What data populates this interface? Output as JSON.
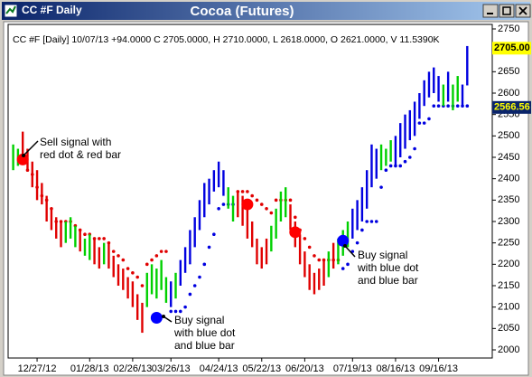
{
  "window_title": "CC #F Daily",
  "chart_data": {
    "type": "ohlc-signals",
    "title": "Cocoa (Futures)",
    "header": "CC #F [Daily] 10/07/13 +94.0000 C 2705.0000, H 2710.0000, L 2618.0000, O 2621.0000, V 11.5390K",
    "ylim": [
      2000,
      2750
    ],
    "yticks": [
      2000,
      2050,
      2100,
      2150,
      2200,
      2250,
      2300,
      2350,
      2400,
      2450,
      2500,
      2550,
      2600,
      2650,
      2700,
      2750
    ],
    "xlim": [
      0,
      96
    ],
    "xticks": [
      {
        "value": 5,
        "label": "12/27/12"
      },
      {
        "value": 16,
        "label": "01/28/13"
      },
      {
        "value": 25,
        "label": "02/26/13"
      },
      {
        "value": 33,
        "label": "03/26/13"
      },
      {
        "value": 43,
        "label": "04/24/13"
      },
      {
        "value": 52,
        "label": "05/22/13"
      },
      {
        "value": 61,
        "label": "06/20/13"
      },
      {
        "value": 71,
        "label": "07/19/13"
      },
      {
        "value": 80,
        "label": "08/16/13"
      },
      {
        "value": 89,
        "label": "09/16/13"
      }
    ],
    "bars": {
      "low": [
        2420,
        2430,
        2440,
        2420,
        2380,
        2350,
        2340,
        2300,
        2280,
        2260,
        2240,
        2250,
        2260,
        2240,
        2230,
        2220,
        2210,
        2200,
        2190,
        2200,
        2190,
        2170,
        2150,
        2140,
        2120,
        2100,
        2070,
        2040,
        2100,
        2130,
        2120,
        2140,
        2110,
        2100,
        2120,
        2150,
        2180,
        2200,
        2240,
        2280,
        2310,
        2340,
        2370,
        2380,
        2360,
        2330,
        2300,
        2310,
        2290,
        2260,
        2240,
        2200,
        2190,
        2200,
        2230,
        2260,
        2300,
        2310,
        2280,
        2240,
        2200,
        2170,
        2140,
        2130,
        2140,
        2150,
        2170,
        2190,
        2200,
        2220,
        2240,
        2260,
        2280,
        2300,
        2330,
        2380,
        2400,
        2420,
        2430,
        2440,
        2430,
        2450,
        2470,
        2490,
        2500,
        2540,
        2570,
        2590,
        2600,
        2580,
        2570,
        2580,
        2560,
        2580,
        2570,
        2618
      ],
      "high": [
        2480,
        2470,
        2510,
        2470,
        2440,
        2420,
        2390,
        2360,
        2330,
        2310,
        2300,
        2300,
        2310,
        2290,
        2280,
        2260,
        2270,
        2260,
        2240,
        2250,
        2250,
        2220,
        2200,
        2190,
        2170,
        2160,
        2130,
        2110,
        2180,
        2200,
        2190,
        2210,
        2170,
        2160,
        2180,
        2210,
        2240,
        2280,
        2310,
        2350,
        2390,
        2400,
        2420,
        2440,
        2420,
        2380,
        2360,
        2370,
        2360,
        2330,
        2300,
        2260,
        2240,
        2260,
        2290,
        2330,
        2370,
        2380,
        2340,
        2300,
        2270,
        2230,
        2200,
        2180,
        2190,
        2210,
        2230,
        2250,
        2260,
        2280,
        2300,
        2330,
        2350,
        2380,
        2420,
        2480,
        2470,
        2480,
        2470,
        2490,
        2500,
        2530,
        2550,
        2560,
        2580,
        2600,
        2630,
        2650,
        2660,
        2640,
        2620,
        2650,
        2620,
        2640,
        2620,
        2710
      ],
      "colors": [
        "#00d000",
        "#00d000",
        "#e00000",
        "#e00000",
        "#e00000",
        "#e00000",
        "#e00000",
        "#e00000",
        "#e00000",
        "#e00000",
        "#e00000",
        "#00d000",
        "#00d000",
        "#00d000",
        "#e00000",
        "#00d000",
        "#00d000",
        "#e00000",
        "#e00000",
        "#00d000",
        "#e00000",
        "#e00000",
        "#e00000",
        "#e00000",
        "#e00000",
        "#e00000",
        "#e00000",
        "#e00000",
        "#00d000",
        "#00d000",
        "#00d000",
        "#00d000",
        "#00d000",
        "#0000e0",
        "#00d000",
        "#0000e0",
        "#0000e0",
        "#0000e0",
        "#0000e0",
        "#0000e0",
        "#0000e0",
        "#0000e0",
        "#0000e0",
        "#0000e0",
        "#0000e0",
        "#00d000",
        "#00d000",
        "#e00000",
        "#e00000",
        "#e00000",
        "#e00000",
        "#e00000",
        "#e00000",
        "#e00000",
        "#00d000",
        "#00d000",
        "#00d000",
        "#00d000",
        "#e00000",
        "#e00000",
        "#e00000",
        "#e00000",
        "#e00000",
        "#e00000",
        "#e00000",
        "#e00000",
        "#00d000",
        "#e00000",
        "#00d000",
        "#00d000",
        "#00d000",
        "#0000e0",
        "#0000e0",
        "#0000e0",
        "#0000e0",
        "#0000e0",
        "#0000e0",
        "#00d000",
        "#00d000",
        "#00d000",
        "#0000e0",
        "#0000e0",
        "#0000e0",
        "#0000e0",
        "#0000e0",
        "#0000e0",
        "#0000e0",
        "#0000e0",
        "#0000e0",
        "#0000e0",
        "#00d000",
        "#0000e0",
        "#00d000",
        "#00d000",
        "#0000e0",
        "#0000e0"
      ]
    },
    "stops": [
      {
        "color": "#e00000",
        "values": [
          null,
          null,
          null,
          2420,
          2410,
          2380,
          2360,
          2350,
          2330,
          2300,
          2300,
          2300,
          2300,
          2290,
          2280,
          2270,
          2270,
          2260,
          2260,
          2260,
          2250,
          2230,
          2220,
          2210,
          2190,
          2180,
          2170,
          2150,
          2200,
          2210,
          2220,
          2230,
          2230,
          null,
          null,
          null,
          null,
          null,
          null,
          null,
          null,
          null,
          null,
          null,
          null,
          null,
          null,
          2370,
          2370,
          2370,
          2360,
          2350,
          2340,
          2330,
          2320,
          2350,
          2350,
          2350,
          2350,
          2310,
          2280,
          2260,
          2240,
          2220,
          2210,
          2210,
          2210,
          2210,
          2210,
          null,
          null,
          null,
          null,
          null,
          null,
          null,
          null,
          null,
          null,
          null,
          null,
          null,
          null,
          null,
          null,
          null,
          null,
          null,
          null,
          null,
          null,
          null,
          null,
          null,
          null,
          null
        ]
      },
      {
        "color": "#0000e0",
        "values": [
          null,
          null,
          null,
          null,
          null,
          null,
          null,
          null,
          null,
          null,
          null,
          null,
          null,
          null,
          null,
          null,
          null,
          null,
          null,
          null,
          null,
          null,
          null,
          null,
          null,
          null,
          null,
          null,
          null,
          null,
          null,
          null,
          null,
          2090,
          2090,
          2090,
          2100,
          2130,
          2150,
          2170,
          2200,
          2240,
          2270,
          2330,
          2340,
          2340,
          2340,
          null,
          null,
          null,
          null,
          null,
          null,
          null,
          null,
          null,
          null,
          null,
          null,
          null,
          null,
          null,
          null,
          null,
          null,
          null,
          null,
          null,
          null,
          2190,
          2200,
          2230,
          2250,
          2280,
          2300,
          2300,
          2300,
          2380,
          2420,
          2430,
          2430,
          2430,
          2440,
          2450,
          2470,
          2530,
          2530,
          2540,
          2570,
          2570,
          2570,
          2570,
          2570,
          2570,
          2570,
          2570
        ]
      }
    ],
    "signals": [
      {
        "x": 2,
        "y": 2445,
        "color": "#ff0000"
      },
      {
        "x": 30,
        "y": 2075,
        "color": "#0000ff"
      },
      {
        "x": 49,
        "y": 2340,
        "color": "#ff0000"
      },
      {
        "x": 59,
        "y": 2275,
        "color": "#ff0000"
      },
      {
        "x": 69,
        "y": 2255,
        "color": "#0000ff"
      }
    ],
    "annotations": [
      {
        "lines": [
          "Sell signal with",
          "red dot & red bar"
        ]
      },
      {
        "lines": [
          "Buy signal",
          "with blue dot",
          "and blue bar"
        ]
      },
      {
        "lines": [
          "Buy signal",
          "with blue dot",
          "and blue bar"
        ]
      }
    ],
    "price_labels": [
      {
        "value": 2705,
        "label": "2705.00"
      },
      {
        "value": 2566.56,
        "label": "2566.56"
      }
    ]
  }
}
